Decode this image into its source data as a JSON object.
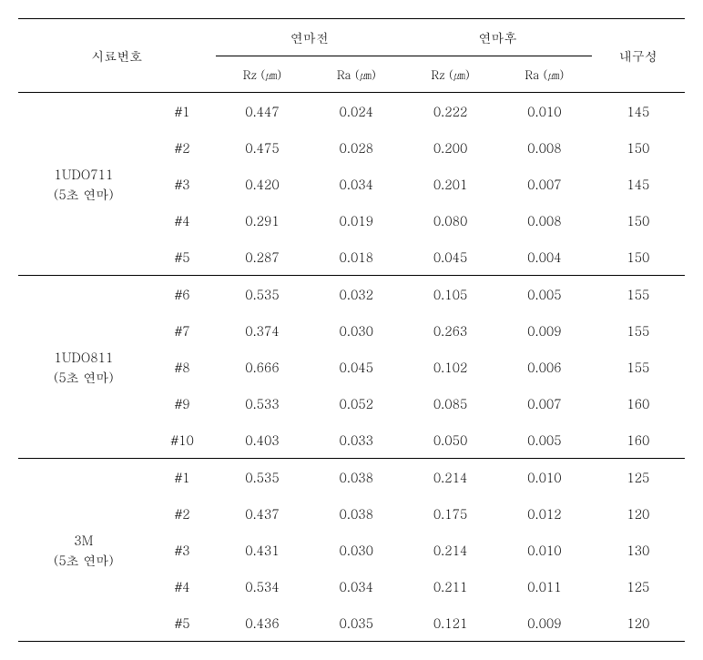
{
  "headers": {
    "sample_no": "시료번호",
    "before": "연마전",
    "after": "연마후",
    "durability": "내구성",
    "rz": "Rz (㎛)",
    "ra": "Ra (㎛)"
  },
  "groups": [
    {
      "label": "1UDO711",
      "sub": "(5초 연마)",
      "rows": [
        {
          "id": "#1",
          "rz_before": "0.447",
          "ra_before": "0.024",
          "rz_after": "0.222",
          "ra_after": "0.010",
          "dur": "145"
        },
        {
          "id": "#2",
          "rz_before": "0.475",
          "ra_before": "0.028",
          "rz_after": "0.200",
          "ra_after": "0.008",
          "dur": "150"
        },
        {
          "id": "#3",
          "rz_before": "0.420",
          "ra_before": "0.034",
          "rz_after": "0.201",
          "ra_after": "0.007",
          "dur": "145"
        },
        {
          "id": "#4",
          "rz_before": "0.291",
          "ra_before": "0.019",
          "rz_after": "0.080",
          "ra_after": "0.008",
          "dur": "150"
        },
        {
          "id": "#5",
          "rz_before": "0.287",
          "ra_before": "0.018",
          "rz_after": "0.045",
          "ra_after": "0.004",
          "dur": "150"
        }
      ]
    },
    {
      "label": "1UDO811",
      "sub": "(5초 연마)",
      "rows": [
        {
          "id": "#6",
          "rz_before": "0.535",
          "ra_before": "0.032",
          "rz_after": "0.105",
          "ra_after": "0.005",
          "dur": "155"
        },
        {
          "id": "#7",
          "rz_before": "0.374",
          "ra_before": "0.030",
          "rz_after": "0.263",
          "ra_after": "0.009",
          "dur": "155"
        },
        {
          "id": "#8",
          "rz_before": "0.666",
          "ra_before": "0.045",
          "rz_after": "0.102",
          "ra_after": "0.006",
          "dur": "155"
        },
        {
          "id": "#9",
          "rz_before": "0.533",
          "ra_before": "0.052",
          "rz_after": "0.085",
          "ra_after": "0.007",
          "dur": "160"
        },
        {
          "id": "#10",
          "rz_before": "0.403",
          "ra_before": "0.033",
          "rz_after": "0.050",
          "ra_after": "0.005",
          "dur": "160"
        }
      ]
    },
    {
      "label": "3M",
      "sub": "(5초 연마)",
      "rows": [
        {
          "id": "#1",
          "rz_before": "0.535",
          "ra_before": "0.038",
          "rz_after": "0.214",
          "ra_after": "0.010",
          "dur": "125"
        },
        {
          "id": "#2",
          "rz_before": "0.437",
          "ra_before": "0.038",
          "rz_after": "0.175",
          "ra_after": "0.012",
          "dur": "120"
        },
        {
          "id": "#3",
          "rz_before": "0.431",
          "ra_before": "0.030",
          "rz_after": "0.214",
          "ra_after": "0.010",
          "dur": "130"
        },
        {
          "id": "#4",
          "rz_before": "0.534",
          "ra_before": "0.034",
          "rz_after": "0.211",
          "ra_after": "0.011",
          "dur": "125"
        },
        {
          "id": "#5",
          "rz_before": "0.436",
          "ra_before": "0.035",
          "rz_after": "0.121",
          "ra_after": "0.009",
          "dur": "120"
        }
      ]
    }
  ]
}
